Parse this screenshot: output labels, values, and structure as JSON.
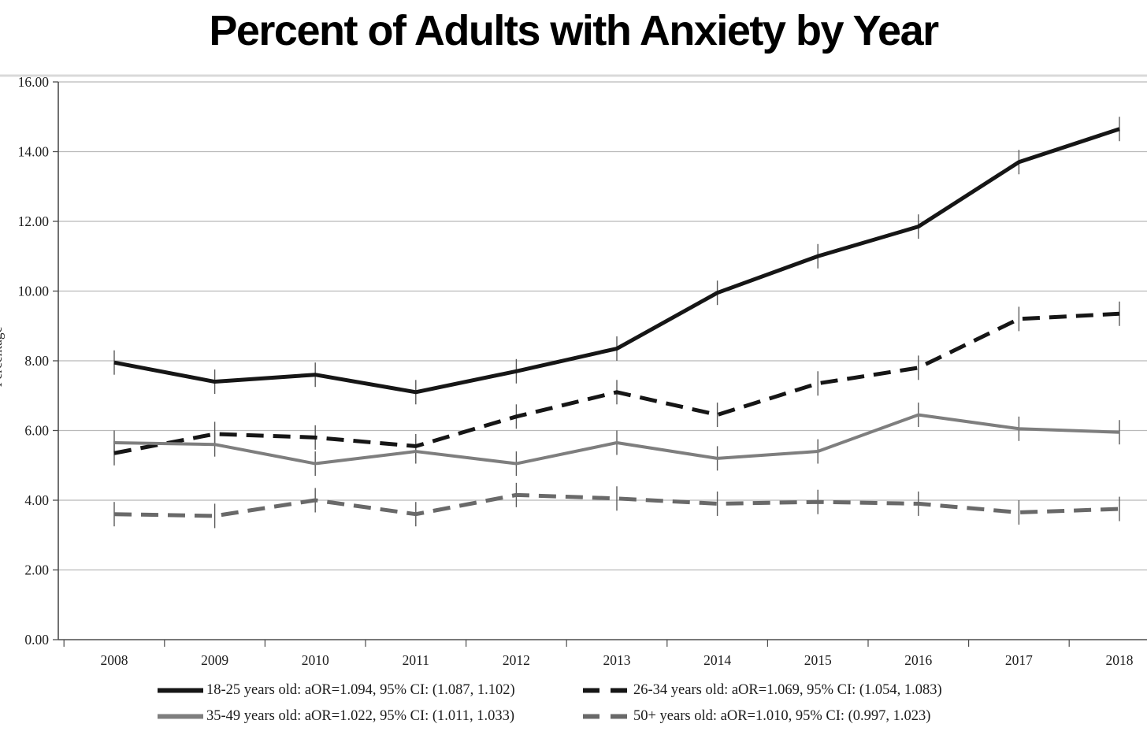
{
  "page": {
    "title": "Percent of Adults with Anxiety by Year"
  },
  "colors": {
    "background": "#ffffff",
    "title_text": "#000000",
    "axis": "#4d4d4d",
    "gridline": "#b9b9b9",
    "top_border": "#d9d9d9",
    "error_bar": "#5a5a5a",
    "tick_label_text": "#1c1c1c"
  },
  "chart_data": {
    "type": "line",
    "title": "Percent of Adults with Anxiety by Year",
    "xlabel": "",
    "ylabel": "Percentage",
    "ylim": [
      0,
      16
    ],
    "ytick_step": 2,
    "ytick_labels": [
      "0.00",
      "2.00",
      "4.00",
      "6.00",
      "8.00",
      "10.00",
      "12.00",
      "14.00",
      "16.00"
    ],
    "categories": [
      "2008",
      "2009",
      "2010",
      "2011",
      "2012",
      "2013",
      "2014",
      "2015",
      "2016",
      "2017",
      "2018"
    ],
    "grid": "horizontal-only",
    "legend_position": "bottom",
    "error_bar_half": 0.35,
    "series": [
      {
        "key": "18-25",
        "label": "18-25 years old: aOR=1.094, 95% CI: (1.087, 1.102)",
        "color": "#161616",
        "dash": "solid",
        "values": [
          7.95,
          7.4,
          7.6,
          7.1,
          7.7,
          8.35,
          9.95,
          11.0,
          11.85,
          13.7,
          14.65
        ]
      },
      {
        "key": "26-34",
        "label": "26-34 years old: aOR=1.069, 95% CI: (1.054, 1.083)",
        "color": "#161616",
        "dash": "dashed",
        "values": [
          5.35,
          5.9,
          5.8,
          5.55,
          6.4,
          7.1,
          6.45,
          7.35,
          7.8,
          9.2,
          9.35
        ]
      },
      {
        "key": "35-49",
        "label": "35-49 years old: aOR=1.022, 95% CI: (1.011, 1.033)",
        "color": "#7e7e7e",
        "dash": "solid",
        "values": [
          5.65,
          5.6,
          5.05,
          5.4,
          5.05,
          5.65,
          5.2,
          5.4,
          6.45,
          6.05,
          5.95
        ]
      },
      {
        "key": "50plus",
        "label": "50+ years old: aOR=1.010, 95% CI: (0.997, 1.023)",
        "color": "#696969",
        "dash": "dashed",
        "values": [
          3.6,
          3.55,
          4.0,
          3.6,
          4.15,
          4.05,
          3.9,
          3.95,
          3.9,
          3.65,
          3.75
        ]
      }
    ]
  }
}
